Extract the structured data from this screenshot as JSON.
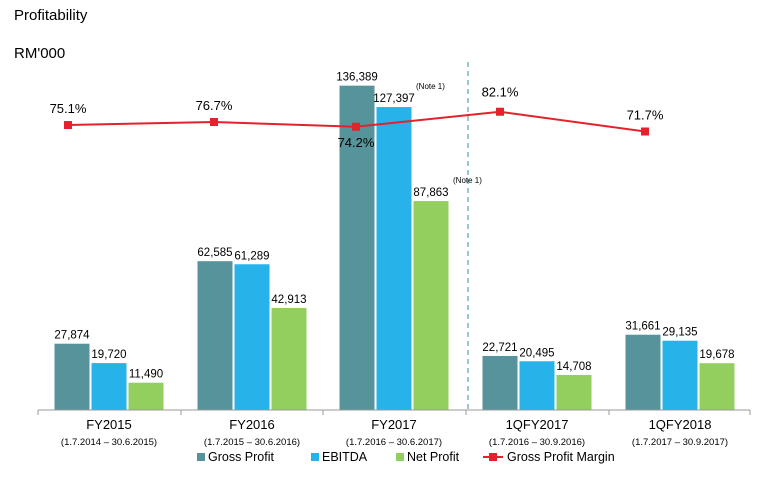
{
  "chart_data": {
    "type": "bar",
    "title": "Profitability",
    "unit": "RM'000",
    "categories": [
      "FY2015",
      "FY2016",
      "FY2017",
      "1QFY2017",
      "1QFY2018"
    ],
    "category_periods": [
      "(1.7.2014 – 30.6.2015)",
      "(1.7.2015 – 30.6.2016)",
      "(1.7.2016 – 30.6.2017)",
      "(1.7.2016 – 30.9.2016)",
      "(1.7.2017 – 30.9.2017)"
    ],
    "series": [
      {
        "name": "Gross Profit",
        "color": "#57939b",
        "values": [
          27874,
          62585,
          136389,
          22721,
          31661
        ],
        "labels": [
          "27,874",
          "62,585",
          "136,389",
          "22,721",
          "31,661"
        ]
      },
      {
        "name": "EBITDA",
        "color": "#27b2ea",
        "values": [
          19720,
          61289,
          127397,
          20495,
          29135
        ],
        "labels": [
          "19,720",
          "61,289",
          "127,397",
          "20,495",
          "29,135"
        ]
      },
      {
        "name": "Net Profit",
        "color": "#93cf5e",
        "values": [
          11490,
          42913,
          87863,
          14708,
          19678
        ],
        "labels": [
          "11,490",
          "42,913",
          "87,863",
          "14,708",
          "19,678"
        ]
      }
    ],
    "line_series": {
      "name": "Gross Profit Margin",
      "color": "#e3222b",
      "values": [
        75.1,
        76.7,
        74.2,
        82.1,
        71.7
      ],
      "labels": [
        "75.1%",
        "76.7%",
        "74.2%",
        "82.1%",
        "71.7%"
      ]
    },
    "notes": [
      {
        "text": "(Note 1)",
        "category": "FY2017",
        "series": "EBITDA"
      },
      {
        "text": "(Note 1)",
        "category": "FY2017",
        "series": "Net Profit"
      }
    ],
    "divider_after_category": "FY2017",
    "legend_position": "bottom",
    "grid": false
  }
}
